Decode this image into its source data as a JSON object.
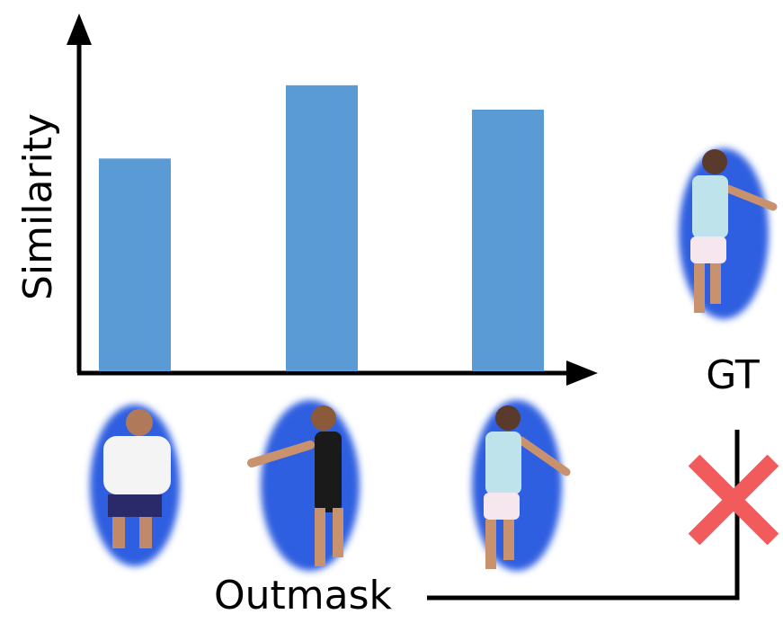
{
  "chart_data": {
    "type": "bar",
    "y_label": "Similarity",
    "values": [
      0.61,
      0.82,
      0.75
    ],
    "color": "#5b9bd5",
    "ylim": [
      0,
      1
    ],
    "gt_label": "GT",
    "outmask_label": "Outmask"
  }
}
